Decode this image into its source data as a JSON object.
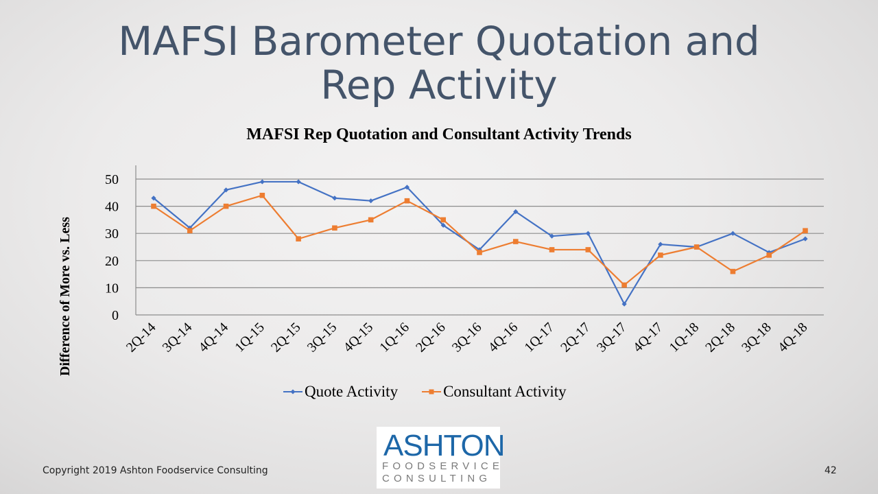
{
  "slide": {
    "title_line1": "MAFSI Barometer Quotation and",
    "title_line2": "Rep Activity",
    "footer_copyright": "Copyright 2019 Ashton Foodservice Consulting",
    "page_number": "42",
    "logo": {
      "main": "ASHTON",
      "line2": "FOODSERVICE",
      "line3": "CONSULTING"
    }
  },
  "chart_data": {
    "type": "line",
    "title": "MAFSI Rep Quotation and Consultant Activity Trends",
    "xlabel": "",
    "ylabel": "Difference of More vs. Less",
    "ylim": [
      0,
      50
    ],
    "yticks": [
      0,
      10,
      20,
      30,
      40,
      50
    ],
    "grid": true,
    "legend_position": "bottom",
    "categories": [
      "2Q-14",
      "3Q-14",
      "4Q-14",
      "1Q-15",
      "2Q-15",
      "3Q-15",
      "4Q-15",
      "1Q-16",
      "2Q-16",
      "3Q-16",
      "4Q-16",
      "1Q-17",
      "2Q-17",
      "3Q-17",
      "4Q-17",
      "1Q-18",
      "2Q-18",
      "3Q-18",
      "4Q-18"
    ],
    "series": [
      {
        "name": "Quote Activity",
        "color": "#4472c4",
        "marker": "diamond",
        "values": [
          43,
          32,
          46,
          49,
          49,
          43,
          42,
          47,
          33,
          24,
          38,
          29,
          30,
          4,
          26,
          25,
          30,
          23,
          28
        ]
      },
      {
        "name": "Consultant Activity",
        "color": "#ed7d31",
        "marker": "square",
        "values": [
          40,
          31,
          40,
          44,
          28,
          32,
          35,
          42,
          35,
          23,
          27,
          24,
          24,
          11,
          22,
          25,
          16,
          22,
          31
        ]
      }
    ]
  }
}
